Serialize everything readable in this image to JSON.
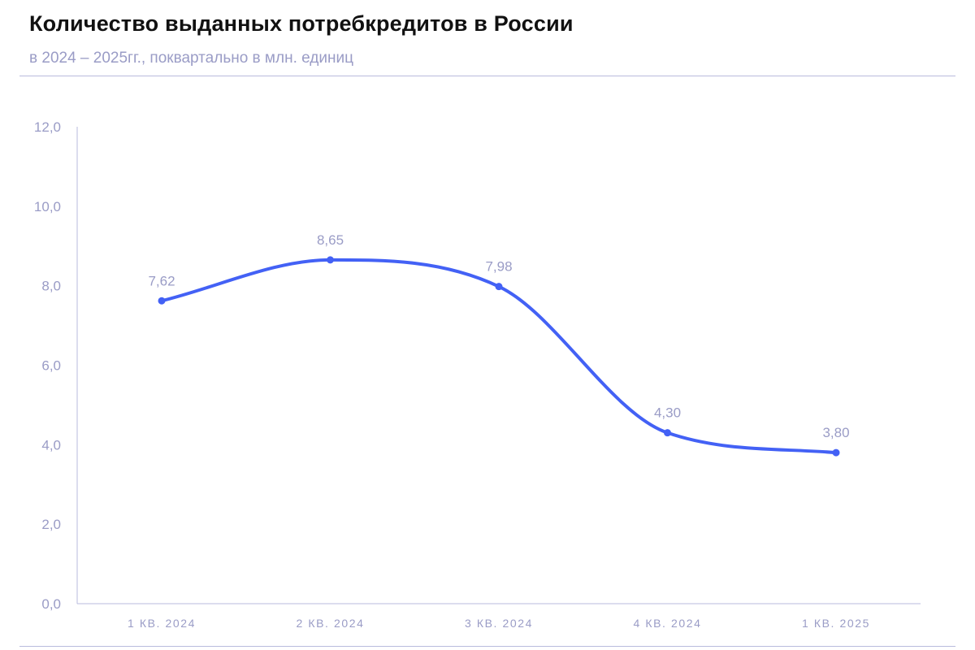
{
  "header": {
    "title": "Количество выданных потребкредитов в России",
    "subtitle": "в 2024 – 2025гг., поквартально в млн. единиц"
  },
  "colors": {
    "line": "#4361f5",
    "axis": "#b9bbdd",
    "text_muted": "#9a9cc6"
  },
  "chart_data": {
    "type": "line",
    "title": "Количество выданных потребкредитов в России",
    "subtitle": "в 2024 – 2025гг., поквартально в млн. единиц",
    "categories": [
      "1 КВ. 2024",
      "2 КВ. 2024",
      "3 КВ. 2024",
      "4 КВ. 2024",
      "1 КВ. 2025"
    ],
    "series": [
      {
        "values": [
          7.62,
          8.65,
          7.98,
          4.3,
          3.8
        ],
        "labels": [
          "7,62",
          "8,65",
          "7,98",
          "4,30",
          "3,80"
        ]
      }
    ],
    "ylim": [
      0,
      12
    ],
    "yticks": [
      0,
      2,
      4,
      6,
      8,
      10,
      12
    ],
    "ytick_labels": [
      "0,0",
      "2,0",
      "4,0",
      "6,0",
      "8,0",
      "10,0",
      "12,0"
    ],
    "smooth": true,
    "grid": false,
    "legend": "none"
  }
}
